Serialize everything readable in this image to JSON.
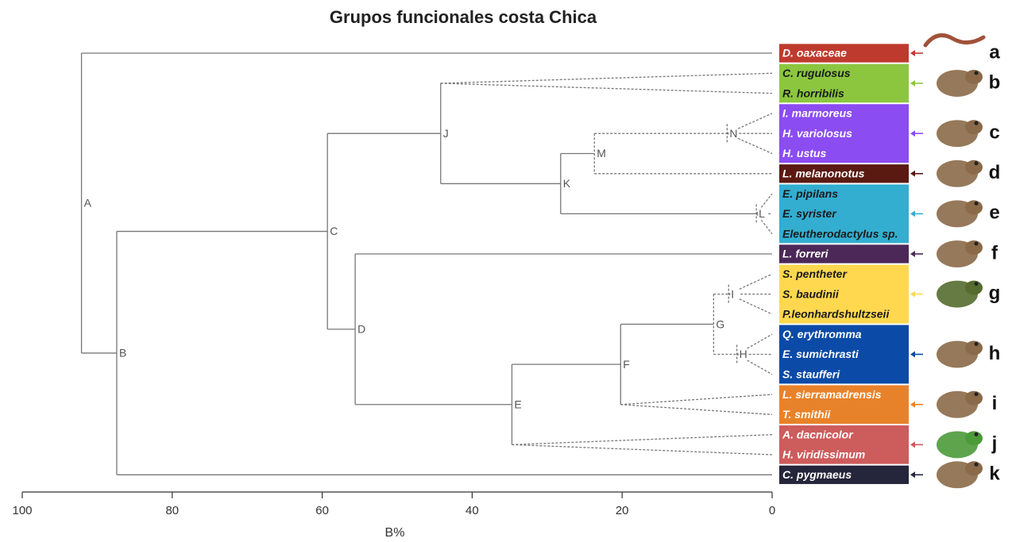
{
  "chart_data": {
    "type": "dendrogram",
    "title": "Grupos funcionales costa Chica",
    "xlabel": "B%",
    "xlim": [
      100,
      0
    ],
    "xticks": [
      100,
      80,
      60,
      40,
      20,
      0
    ],
    "leaves": [
      "D. oaxaceae",
      "C. rugulosus",
      "R. horribilis",
      "I. marmoreus",
      "H. variolosus",
      "H. ustus",
      "L. melanonotus",
      "E. pipilans",
      "E. syrister",
      "Eleutherodactylus sp.",
      "L. forreri",
      "S. pentheter",
      "S. baudinii",
      "P.leonhardshultzseii",
      "Q. erythromma",
      "E. sumichrasti",
      "S. staufferi",
      "L. sierramadrensis",
      "T. smithii",
      "A. dacnicolor",
      "H. viridissimum",
      "C. pygmaeus"
    ],
    "groups": [
      {
        "letter": "a",
        "color": "#bf3a2e",
        "text_color": "#ffffff",
        "leaves": [
          0
        ]
      },
      {
        "letter": "b",
        "color": "#8cc63f",
        "text_color": "#1a1a1a",
        "leaves": [
          1,
          2
        ]
      },
      {
        "letter": "c",
        "color": "#8b4cf2",
        "text_color": "#ffffff",
        "leaves": [
          3,
          4,
          5
        ]
      },
      {
        "letter": "d",
        "color": "#5a1a12",
        "text_color": "#ffffff",
        "leaves": [
          6
        ]
      },
      {
        "letter": "e",
        "color": "#33aed0",
        "text_color": "#1a1a1a",
        "leaves": [
          7,
          8,
          9
        ]
      },
      {
        "letter": "f",
        "color": "#4b2858",
        "text_color": "#ffffff",
        "leaves": [
          10
        ]
      },
      {
        "letter": "g",
        "color": "#ffd84f",
        "text_color": "#1a1a1a",
        "leaves": [
          11,
          12,
          13
        ]
      },
      {
        "letter": "h",
        "color": "#0b4aa6",
        "text_color": "#ffffff",
        "leaves": [
          14,
          15,
          16
        ]
      },
      {
        "letter": "i",
        "color": "#e8822a",
        "text_color": "#ffffff",
        "leaves": [
          17,
          18
        ]
      },
      {
        "letter": "j",
        "color": "#cd5c5c",
        "text_color": "#ffffff",
        "leaves": [
          19,
          20
        ]
      },
      {
        "letter": "k",
        "color": "#25253b",
        "text_color": "#ffffff",
        "leaves": [
          21
        ]
      }
    ],
    "nodes": [
      {
        "label": "A",
        "height": 92.1,
        "dashed": false,
        "children": [
          {
            "leaf": 0
          },
          {
            "node": 1
          }
        ]
      },
      {
        "label": "B",
        "height": 87.4,
        "dashed": false,
        "children": [
          {
            "node": 2
          },
          {
            "leaf": 21
          }
        ]
      },
      {
        "label": "C",
        "height": 59.3,
        "dashed": false,
        "children": [
          {
            "node": 3
          },
          {
            "node": 8
          }
        ]
      },
      {
        "label": "J",
        "height": 44.2,
        "dashed": false,
        "children": [
          {
            "fan": [
              1,
              2
            ]
          },
          {
            "node": 4
          }
        ]
      },
      {
        "label": "K",
        "height": 28.2,
        "dashed": false,
        "children": [
          {
            "node": 5
          },
          {
            "node": 7
          }
        ]
      },
      {
        "label": "M",
        "height": 23.7,
        "dashed": true,
        "children": [
          {
            "node": 6
          },
          {
            "leaf": 6
          }
        ]
      },
      {
        "label": "N",
        "height": 6.0,
        "dashed": true,
        "children": [
          {
            "fan": [
              3,
              4,
              5
            ]
          }
        ]
      },
      {
        "label": "L",
        "height": 2.1,
        "dashed": true,
        "children": [
          {
            "fan": [
              7,
              8,
              9
            ]
          }
        ]
      },
      {
        "label": "D",
        "height": 55.6,
        "dashed": false,
        "children": [
          {
            "leaf": 10
          },
          {
            "node": 9
          }
        ]
      },
      {
        "label": "E",
        "height": 34.7,
        "dashed": false,
        "children": [
          {
            "node": 10
          },
          {
            "fan": [
              19,
              20
            ]
          }
        ]
      },
      {
        "label": "F",
        "height": 20.2,
        "dashed": false,
        "children": [
          {
            "node": 11
          },
          {
            "fan": [
              17,
              18
            ]
          }
        ]
      },
      {
        "label": "G",
        "height": 7.8,
        "dashed": true,
        "children": [
          {
            "node": 12
          },
          {
            "node": 13
          }
        ]
      },
      {
        "label": "I",
        "height": 5.8,
        "dashed": true,
        "children": [
          {
            "fan": [
              11,
              12,
              13
            ]
          }
        ]
      },
      {
        "label": "H",
        "height": 4.7,
        "dashed": true,
        "children": [
          {
            "fan": [
              14,
              15,
              16
            ]
          }
        ]
      }
    ]
  }
}
